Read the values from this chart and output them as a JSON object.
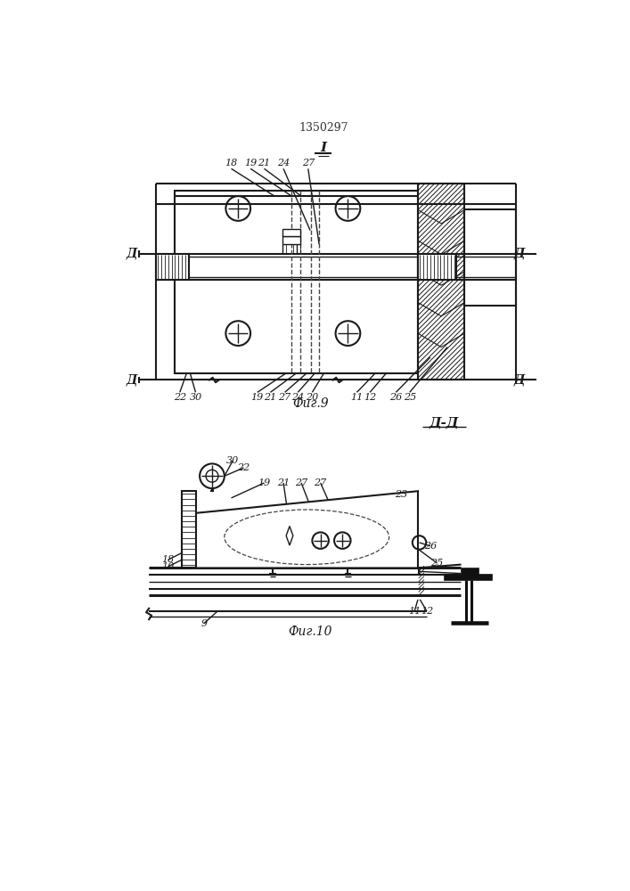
{
  "patent_number": "1350297",
  "fig9_label": "Фиг.9",
  "fig10_label": "Фиг.10",
  "section_I": "I",
  "section_DD": "Д-Д",
  "D_letter": "Д",
  "line_color": "#1a1a1a",
  "bg_color": "#ffffff"
}
